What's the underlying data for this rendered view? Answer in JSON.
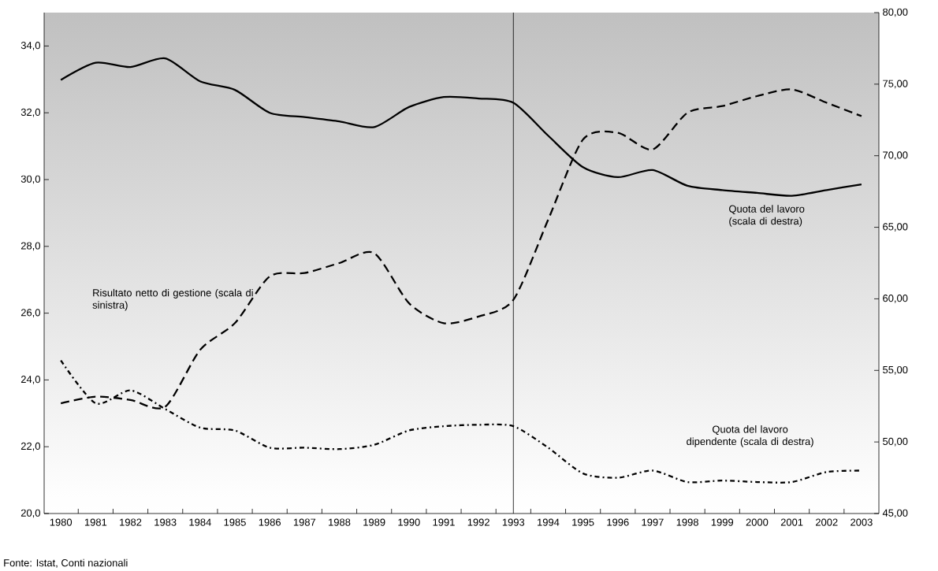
{
  "chart_data": {
    "type": "line",
    "categories": [
      "1980",
      "1981",
      "1982",
      "1983",
      "1984",
      "1985",
      "1986",
      "1987",
      "1988",
      "1989",
      "1990",
      "1991",
      "1992",
      "1993",
      "1994",
      "1995",
      "1996",
      "1997",
      "1998",
      "1999",
      "2000",
      "2001",
      "2002",
      "2003"
    ],
    "series": [
      {
        "name": "Risultato netto di gestione (scala di sinistra)",
        "color": "#000000",
        "line_style": "dashed",
        "values": [
          23.3,
          23.5,
          23.4,
          23.2,
          24.9,
          25.7,
          27.1,
          27.2,
          27.5,
          27.8,
          26.3,
          25.7,
          25.9,
          26.4,
          28.8,
          31.2,
          31.4,
          30.9,
          32.0,
          32.2,
          32.5,
          32.7,
          32.3,
          31.9
        ]
      },
      {
        "name": "Quota del lavoro (scala di destra)",
        "color": "#000000",
        "line_style": "solid",
        "axis": "y2",
        "values": [
          75.3,
          76.5,
          76.2,
          76.8,
          75.2,
          74.6,
          73.0,
          72.7,
          72.4,
          72.0,
          73.4,
          74.1,
          74.0,
          73.7,
          71.4,
          69.2,
          68.5,
          69.0,
          67.9,
          67.6,
          67.4,
          67.2,
          67.6,
          68.0
        ]
      },
      {
        "name": "Quota del lavoro dipendente (scala di destra)",
        "color": "#000000",
        "line_style": "dotted",
        "axis": "y2",
        "values": [
          55.7,
          52.7,
          53.6,
          52.3,
          51.0,
          50.8,
          49.6,
          49.6,
          49.5,
          49.8,
          50.8,
          51.1,
          51.2,
          51.1,
          49.6,
          47.8,
          47.5,
          48.0,
          47.2,
          47.3,
          47.2,
          47.2,
          47.9,
          48.0
        ]
      }
    ],
    "ylim": [
      20,
      35
    ],
    "yticks": [
      {
        "value": 20,
        "label": "20,0"
      },
      {
        "value": 22,
        "label": "22,0"
      },
      {
        "value": 24,
        "label": "24,0"
      },
      {
        "value": 26,
        "label": "26,0"
      },
      {
        "value": 28,
        "label": "28,0"
      },
      {
        "value": 30,
        "label": "30,0"
      },
      {
        "value": 32,
        "label": "32,0"
      },
      {
        "value": 34,
        "label": "34,0"
      }
    ],
    "y2lim": [
      45,
      80
    ],
    "y2ticks": [
      {
        "value": 45,
        "label": "45,00"
      },
      {
        "value": 50,
        "label": "50,00"
      },
      {
        "value": 55,
        "label": "55,00"
      },
      {
        "value": 60,
        "label": "60,00"
      },
      {
        "value": 65,
        "label": "65,00"
      },
      {
        "value": 70,
        "label": "70,00"
      },
      {
        "value": 75,
        "label": "75,00"
      },
      {
        "value": 80,
        "label": "80,00"
      }
    ],
    "ref_lines": [
      {
        "axis": "x",
        "value": "1993",
        "color": "#000000"
      }
    ],
    "annotations": [
      "Fonte: Istat, Conti nazionali"
    ]
  }
}
